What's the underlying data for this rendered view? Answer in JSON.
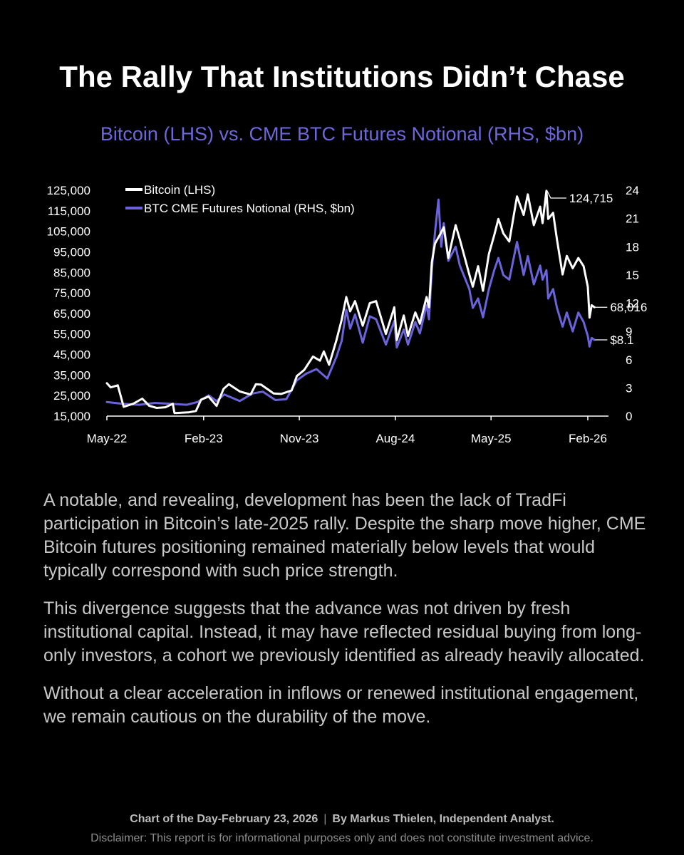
{
  "title": "The Rally That Institutions Didn’t Chase",
  "subtitle": "Bitcoin (LHS) vs. CME BTC Futures Notional (RHS, $bn)",
  "colors": {
    "background": "#000000",
    "btc": "#ffffff",
    "cme": "#6b63d9",
    "subtitle": "#6d67db",
    "body_text": "#c8c8c8"
  },
  "chart_data": {
    "type": "line",
    "legend": {
      "placement": "top-left"
    },
    "grid": false,
    "x_ticks": [
      "May-22",
      "Feb-23",
      "Nov-23",
      "Aug-24",
      "May-25",
      "Feb-26"
    ],
    "xlim": [
      "2022-05-01",
      "2026-04-01"
    ],
    "y_left": {
      "range": [
        15000,
        125000
      ],
      "ticks": [
        15000,
        25000,
        35000,
        45000,
        55000,
        65000,
        75000,
        85000,
        95000,
        105000,
        115000,
        125000
      ],
      "tick_labels": [
        "15,000",
        "25,000",
        "35,000",
        "45,000",
        "55,000",
        "65,000",
        "75,000",
        "85,000",
        "95,000",
        "105,000",
        "115,000",
        "125,000"
      ]
    },
    "y_right": {
      "range": [
        0,
        24
      ],
      "ticks": [
        0,
        3,
        6,
        9,
        12,
        15,
        18,
        21,
        24
      ],
      "tick_labels": [
        "0",
        "3",
        "6",
        "9",
        "12",
        "15",
        "18",
        "21",
        "24"
      ]
    },
    "series": [
      {
        "name": "Bitcoin (LHS)",
        "axis": "left",
        "color": "#ffffff",
        "points": [
          [
            "2022-05-01",
            31000
          ],
          [
            "2022-05-12",
            29000
          ],
          [
            "2022-06-01",
            30000
          ],
          [
            "2022-06-18",
            19500
          ],
          [
            "2022-07-15",
            21000
          ],
          [
            "2022-08-10",
            23500
          ],
          [
            "2022-08-30",
            20000
          ],
          [
            "2022-09-20",
            19000
          ],
          [
            "2022-10-15",
            19300
          ],
          [
            "2022-11-05",
            21000
          ],
          [
            "2022-11-10",
            16500
          ],
          [
            "2022-12-20",
            16800
          ],
          [
            "2023-01-10",
            17500
          ],
          [
            "2023-01-25",
            23000
          ],
          [
            "2023-02-15",
            24500
          ],
          [
            "2023-03-10",
            20000
          ],
          [
            "2023-03-30",
            28300
          ],
          [
            "2023-04-14",
            30500
          ],
          [
            "2023-05-15",
            27000
          ],
          [
            "2023-06-15",
            25500
          ],
          [
            "2023-06-30",
            30500
          ],
          [
            "2023-07-15",
            30300
          ],
          [
            "2023-08-20",
            26000
          ],
          [
            "2023-09-10",
            25800
          ],
          [
            "2023-10-10",
            27500
          ],
          [
            "2023-10-25",
            34500
          ],
          [
            "2023-11-15",
            37500
          ],
          [
            "2023-12-10",
            44000
          ],
          [
            "2023-12-30",
            42000
          ],
          [
            "2024-01-10",
            46500
          ],
          [
            "2024-01-25",
            40000
          ],
          [
            "2024-02-15",
            52000
          ],
          [
            "2024-03-01",
            62000
          ],
          [
            "2024-03-14",
            73000
          ],
          [
            "2024-03-25",
            66000
          ],
          [
            "2024-04-08",
            71000
          ],
          [
            "2024-04-30",
            59000
          ],
          [
            "2024-05-20",
            70000
          ],
          [
            "2024-06-07",
            71000
          ],
          [
            "2024-07-05",
            55000
          ],
          [
            "2024-07-29",
            68000
          ],
          [
            "2024-08-05",
            52000
          ],
          [
            "2024-08-25",
            64000
          ],
          [
            "2024-09-06",
            54000
          ],
          [
            "2024-09-27",
            65500
          ],
          [
            "2024-10-10",
            60000
          ],
          [
            "2024-10-29",
            73000
          ],
          [
            "2024-11-05",
            68000
          ],
          [
            "2024-11-13",
            90000
          ],
          [
            "2024-11-22",
            99000
          ],
          [
            "2024-12-05",
            103000
          ],
          [
            "2024-12-17",
            107000
          ],
          [
            "2024-12-30",
            92000
          ],
          [
            "2025-01-20",
            108000
          ],
          [
            "2025-02-01",
            101000
          ],
          [
            "2025-02-28",
            84000
          ],
          [
            "2025-03-10",
            78000
          ],
          [
            "2025-03-25",
            88000
          ],
          [
            "2025-04-08",
            76000
          ],
          [
            "2025-04-25",
            94000
          ],
          [
            "2025-05-10",
            103000
          ],
          [
            "2025-05-22",
            111000
          ],
          [
            "2025-06-05",
            104000
          ],
          [
            "2025-06-22",
            100000
          ],
          [
            "2025-07-14",
            122000
          ],
          [
            "2025-08-02",
            113000
          ],
          [
            "2025-08-14",
            123000
          ],
          [
            "2025-08-31",
            108000
          ],
          [
            "2025-09-18",
            117000
          ],
          [
            "2025-09-25",
            109000
          ],
          [
            "2025-10-06",
            124715
          ],
          [
            "2025-10-11",
            111000
          ],
          [
            "2025-10-25",
            114000
          ],
          [
            "2025-11-05",
            101000
          ],
          [
            "2025-11-21",
            84000
          ],
          [
            "2025-12-03",
            93000
          ],
          [
            "2025-12-20",
            87000
          ],
          [
            "2026-01-05",
            92000
          ],
          [
            "2026-01-20",
            88000
          ],
          [
            "2026-02-01",
            78000
          ],
          [
            "2026-02-06",
            63000
          ],
          [
            "2026-02-12",
            69000
          ],
          [
            "2026-02-20",
            68016
          ]
        ]
      },
      {
        "name": "BTC CME Futures Notional (RHS, $bn)",
        "axis": "right",
        "color": "#6b63d9",
        "points": [
          [
            "2022-05-01",
            1.5
          ],
          [
            "2022-06-15",
            1.3
          ],
          [
            "2022-08-01",
            1.2
          ],
          [
            "2022-09-15",
            1.4
          ],
          [
            "2022-11-01",
            1.3
          ],
          [
            "2022-12-15",
            1.2
          ],
          [
            "2023-01-15",
            1.5
          ],
          [
            "2023-02-15",
            2.2
          ],
          [
            "2023-03-10",
            1.6
          ],
          [
            "2023-04-01",
            2.3
          ],
          [
            "2023-05-15",
            1.6
          ],
          [
            "2023-06-20",
            2.4
          ],
          [
            "2023-07-20",
            2.6
          ],
          [
            "2023-08-25",
            1.7
          ],
          [
            "2023-09-25",
            1.8
          ],
          [
            "2023-10-25",
            3.8
          ],
          [
            "2023-11-20",
            4.5
          ],
          [
            "2023-12-20",
            5.0
          ],
          [
            "2024-01-20",
            4.0
          ],
          [
            "2024-02-15",
            6.3
          ],
          [
            "2024-03-01",
            8.0
          ],
          [
            "2024-03-14",
            11.3
          ],
          [
            "2024-03-25",
            9.3
          ],
          [
            "2024-04-08",
            10.8
          ],
          [
            "2024-04-30",
            7.8
          ],
          [
            "2024-05-20",
            10.6
          ],
          [
            "2024-06-07",
            10.3
          ],
          [
            "2024-07-05",
            7.6
          ],
          [
            "2024-07-29",
            10.1
          ],
          [
            "2024-08-05",
            7.3
          ],
          [
            "2024-08-25",
            9.2
          ],
          [
            "2024-09-06",
            7.6
          ],
          [
            "2024-09-27",
            10.0
          ],
          [
            "2024-10-10",
            8.8
          ],
          [
            "2024-10-29",
            11.8
          ],
          [
            "2024-11-05",
            10.3
          ],
          [
            "2024-11-13",
            15.5
          ],
          [
            "2024-11-22",
            19.5
          ],
          [
            "2024-12-02",
            23.0
          ],
          [
            "2024-12-10",
            18.0
          ],
          [
            "2024-12-17",
            20.5
          ],
          [
            "2024-12-30",
            16.5
          ],
          [
            "2025-01-20",
            18.0
          ],
          [
            "2025-02-01",
            16.0
          ],
          [
            "2025-02-28",
            13.5
          ],
          [
            "2025-03-10",
            11.5
          ],
          [
            "2025-03-25",
            12.5
          ],
          [
            "2025-04-08",
            10.5
          ],
          [
            "2025-04-25",
            13.5
          ],
          [
            "2025-05-10",
            15.5
          ],
          [
            "2025-05-22",
            16.8
          ],
          [
            "2025-06-05",
            15.0
          ],
          [
            "2025-06-22",
            14.5
          ],
          [
            "2025-07-14",
            18.5
          ],
          [
            "2025-08-02",
            15.0
          ],
          [
            "2025-08-14",
            17.0
          ],
          [
            "2025-08-31",
            14.0
          ],
          [
            "2025-09-18",
            16.0
          ],
          [
            "2025-09-25",
            14.5
          ],
          [
            "2025-10-06",
            15.5
          ],
          [
            "2025-10-11",
            12.5
          ],
          [
            "2025-10-25",
            13.5
          ],
          [
            "2025-11-05",
            11.5
          ],
          [
            "2025-11-21",
            9.5
          ],
          [
            "2025-12-03",
            11.0
          ],
          [
            "2025-12-20",
            9.0
          ],
          [
            "2026-01-05",
            11.0
          ],
          [
            "2026-01-20",
            10.0
          ],
          [
            "2026-02-01",
            8.5
          ],
          [
            "2026-02-06",
            7.4
          ],
          [
            "2026-02-12",
            8.3
          ],
          [
            "2026-02-20",
            8.1
          ]
        ]
      }
    ],
    "annotations": [
      {
        "text": "124,715",
        "series": 0,
        "date": "2025-10-06",
        "value": 124715
      },
      {
        "text": "68,016",
        "series": 0,
        "date": "2026-02-20",
        "value": 68016
      },
      {
        "text": "$8.1",
        "series": 1,
        "date": "2026-02-20",
        "value": 8.1
      }
    ]
  },
  "body": {
    "paragraphs": [
      "A notable, and revealing, development has been the lack of TradFi participation in Bitcoin’s late-2025 rally. Despite the sharp move higher, CME Bitcoin futures positioning remained materially below levels that would typically correspond with such price strength.",
      "This divergence suggests that the advance was not driven by fresh institutional capital. Instead, it may have reflected residual buying from long-only investors, a cohort we previously identified as already heavily allocated.",
      "Without a clear acceleration in inflows or renewed institutional engagement, we remain cautious on the durability of the move."
    ]
  },
  "footer": {
    "chart_of_day": "Chart of the Day-February 23, 2026",
    "separator": "|",
    "author": "By Markus Thielen, Independent Analyst.",
    "disclaimer": "Disclaimer: This report is for informational purposes only and does not constitute investment advice."
  }
}
